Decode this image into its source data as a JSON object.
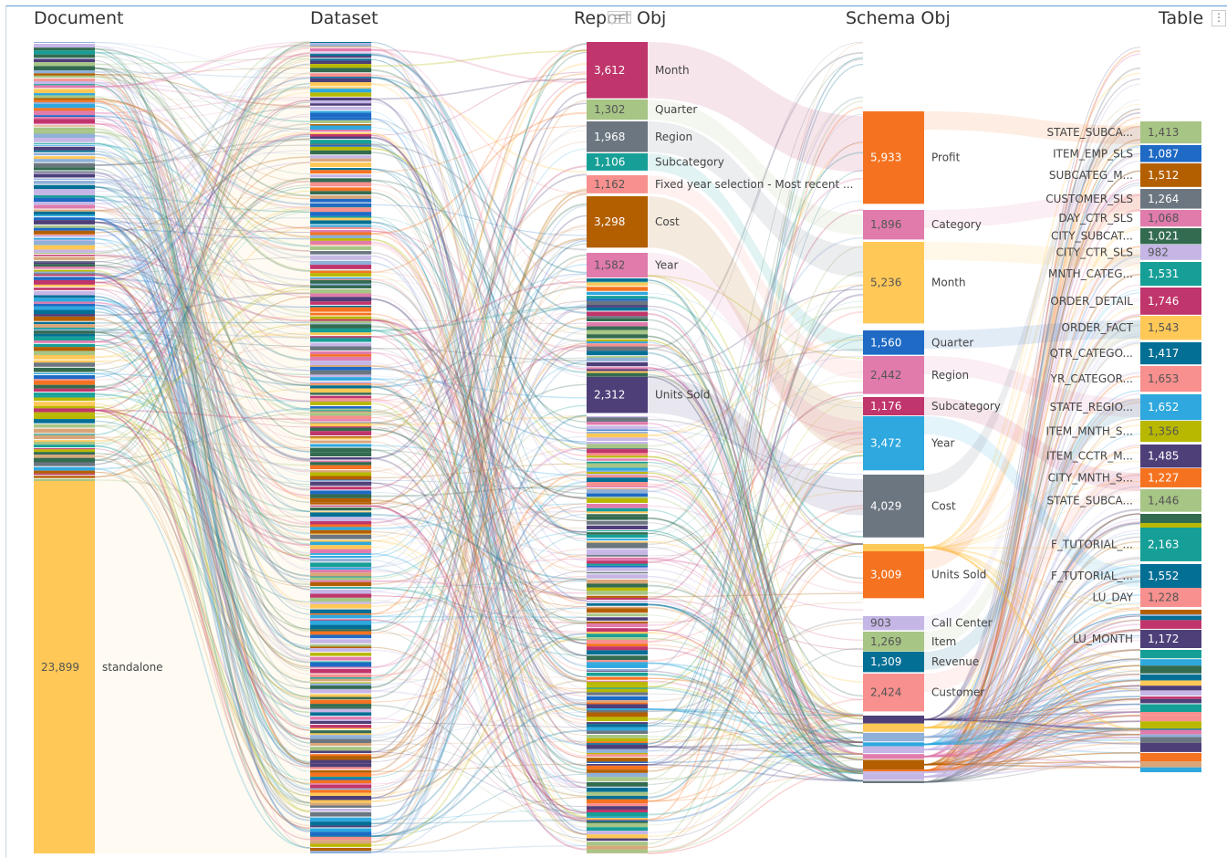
{
  "headers": {
    "document": "Document",
    "dataset": "Dataset",
    "report_obj": "Report Obj",
    "schema_obj": "Schema Obj",
    "table": "Table"
  },
  "icons": {
    "drag_handle": "grip-icon",
    "menu": "kebab-menu-icon"
  },
  "chart_data": {
    "type": "sankey",
    "columns": [
      "Document",
      "Dataset",
      "Report Obj",
      "Schema Obj",
      "Table"
    ],
    "nodes": {
      "document": [
        {
          "label": "standalone",
          "value": 23899,
          "color": "#ffc857"
        }
      ],
      "report_obj": [
        {
          "label": "Month",
          "value": 3612,
          "color": "#c0356b"
        },
        {
          "label": "Quarter",
          "value": 1302,
          "color": "#a7c585"
        },
        {
          "label": "Region",
          "value": 1968,
          "color": "#6b7680"
        },
        {
          "label": "Subcategory",
          "value": 1106,
          "color": "#169f97"
        },
        {
          "label": "Fixed year selection - Most recent ...",
          "value": 1162,
          "color": "#f7908e"
        },
        {
          "label": "Cost",
          "value": 3298,
          "color": "#b35f00"
        },
        {
          "label": "Year",
          "value": 1582,
          "color": "#e07bac"
        },
        {
          "label": "Units Sold",
          "value": 2312,
          "color": "#4e3f79"
        }
      ],
      "schema_obj": [
        {
          "label": "Profit",
          "value": 5933,
          "color": "#f57320"
        },
        {
          "label": "Category",
          "value": 1896,
          "color": "#e07bac"
        },
        {
          "label": "Month",
          "value": 5236,
          "color": "#ffc857"
        },
        {
          "label": "Quarter",
          "value": 1560,
          "color": "#1e6ac4"
        },
        {
          "label": "Region",
          "value": 2442,
          "color": "#e07bac"
        },
        {
          "label": "Subcategory",
          "value": 1176,
          "color": "#c0356b"
        },
        {
          "label": "Year",
          "value": 3472,
          "color": "#2ea8de"
        },
        {
          "label": "Cost",
          "value": 4029,
          "color": "#6b7680"
        },
        {
          "label": "Units Sold",
          "value": 3009,
          "color": "#f57320"
        },
        {
          "label": "Call Center",
          "value": 903,
          "color": "#c5b6e6"
        },
        {
          "label": "Item",
          "value": 1269,
          "color": "#a7c585"
        },
        {
          "label": "Revenue",
          "value": 1309,
          "color": "#046f95"
        },
        {
          "label": "Customer",
          "value": 2424,
          "color": "#f7908e"
        }
      ],
      "table": [
        {
          "label": "STATE_SUBCA...",
          "value": 1413,
          "color": "#a7c585"
        },
        {
          "label": "ITEM_EMP_SLS",
          "value": 1087,
          "color": "#1e6ac4"
        },
        {
          "label": "SUBCATEG_M...",
          "value": 1512,
          "color": "#b35f00"
        },
        {
          "label": "CUSTOMER_SLS",
          "value": 1264,
          "color": "#6b7680"
        },
        {
          "label": "DAY_CTR_SLS",
          "value": 1068,
          "color": "#e07bac"
        },
        {
          "label": "CITY_SUBCAT...",
          "value": 1021,
          "color": "#336b50"
        },
        {
          "label": "CITY_CTR_SLS",
          "value": 982,
          "color": "#c5b6e6"
        },
        {
          "label": "MNTH_CATEG...",
          "value": 1531,
          "color": "#169f97"
        },
        {
          "label": "ORDER_DETAIL",
          "value": 1746,
          "color": "#c0356b"
        },
        {
          "label": "ORDER_FACT",
          "value": 1543,
          "color": "#ffc857"
        },
        {
          "label": "QTR_CATEGO...",
          "value": 1417,
          "color": "#046f95"
        },
        {
          "label": "YR_CATEGOR...",
          "value": 1653,
          "color": "#f7908e"
        },
        {
          "label": "STATE_REGIO...",
          "value": 1652,
          "color": "#2ea8de"
        },
        {
          "label": "ITEM_MNTH_S...",
          "value": 1356,
          "color": "#b8b800"
        },
        {
          "label": "ITEM_CCTR_M...",
          "value": 1485,
          "color": "#4e3f79"
        },
        {
          "label": "CITY_MNTH_S...",
          "value": 1227,
          "color": "#f57320"
        },
        {
          "label": "STATE_SUBCA...",
          "value": 1446,
          "color": "#a7c585"
        },
        {
          "label": "F_TUTORIAL_...",
          "value": 2163,
          "color": "#169f97"
        },
        {
          "label": "F_TUTORIAL_...",
          "value": 1552,
          "color": "#046f95"
        },
        {
          "label": "LU_DAY",
          "value": 1228,
          "color": "#f7908e"
        },
        {
          "label": "LU_MONTH",
          "value": 1172,
          "color": "#4e3f79"
        }
      ]
    }
  }
}
